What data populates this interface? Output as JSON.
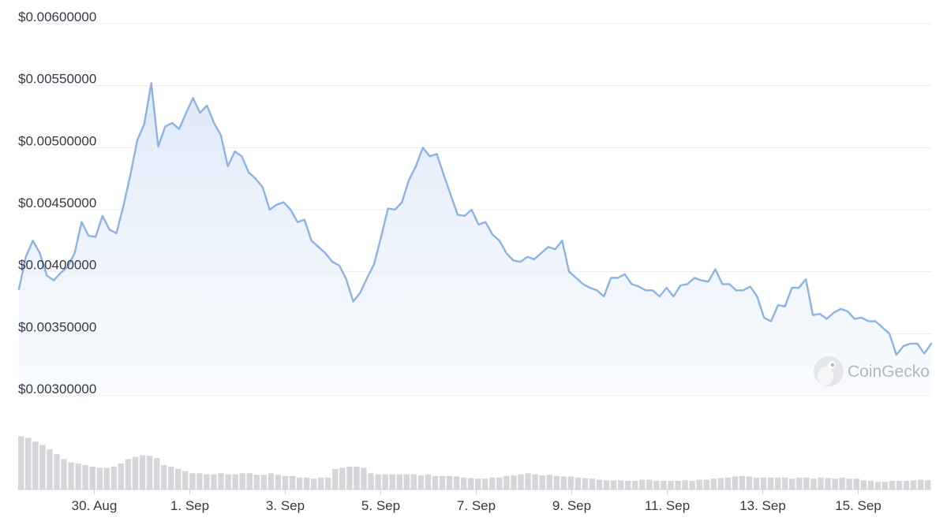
{
  "chart_data": [
    {
      "type": "area",
      "series": [
        {
          "values": [
            0.00386,
            0.00412,
            0.00425,
            0.00415,
            0.00397,
            0.00393,
            0.00399,
            0.00404,
            0.00415,
            0.0044,
            0.00429,
            0.00428,
            0.00445,
            0.00434,
            0.00431,
            0.00453,
            0.00478,
            0.00506,
            0.00519,
            0.00552,
            0.00501,
            0.00517,
            0.0052,
            0.00515,
            0.00528,
            0.0054,
            0.00528,
            0.00534,
            0.0052,
            0.0051,
            0.00485,
            0.00497,
            0.00493,
            0.0048,
            0.00475,
            0.00468,
            0.0045,
            0.00454,
            0.00456,
            0.0045,
            0.0044,
            0.00442,
            0.00425,
            0.0042,
            0.00415,
            0.00408,
            0.00405,
            0.00394,
            0.00376,
            0.00383,
            0.00395,
            0.00406,
            0.00428,
            0.00451,
            0.0045,
            0.00456,
            0.00474,
            0.00485,
            0.005,
            0.00493,
            0.00495,
            0.00478,
            0.00462,
            0.00446,
            0.00445,
            0.0045,
            0.00438,
            0.0044,
            0.0043,
            0.00425,
            0.00415,
            0.00409,
            0.00408,
            0.00412,
            0.0041,
            0.00415,
            0.0042,
            0.00418,
            0.00425,
            0.004,
            0.00395,
            0.0039,
            0.00387,
            0.00385,
            0.0038,
            0.00395,
            0.00395,
            0.00398,
            0.0039,
            0.00388,
            0.00385,
            0.00385,
            0.0038,
            0.00387,
            0.0038,
            0.00389,
            0.0039,
            0.00395,
            0.00393,
            0.00392,
            0.00402,
            0.0039,
            0.0039,
            0.00385,
            0.00385,
            0.00388,
            0.0038,
            0.00363,
            0.0036,
            0.00373,
            0.00372,
            0.00387,
            0.00387,
            0.00394,
            0.00365,
            0.00366,
            0.00362,
            0.00367,
            0.0037,
            0.00368,
            0.00362,
            0.00363,
            0.0036,
            0.0036,
            0.00355,
            0.0035,
            0.00333,
            0.0034,
            0.00342,
            0.00342,
            0.00334,
            0.00342
          ]
        }
      ],
      "yticks": [
        "$0.00600000",
        "$0.00550000",
        "$0.00500000",
        "$0.00450000",
        "$0.00400000",
        "$0.00350000",
        "$0.00300000"
      ],
      "ylim": [
        0.003,
        0.006
      ],
      "grid": true,
      "line_color": "#8db3e2",
      "fill_color": "#e8f0fb"
    },
    {
      "type": "bar",
      "series": [
        {
          "values": [
            0.98,
            0.95,
            0.88,
            0.82,
            0.74,
            0.65,
            0.56,
            0.5,
            0.48,
            0.45,
            0.42,
            0.4,
            0.4,
            0.42,
            0.48,
            0.56,
            0.6,
            0.63,
            0.62,
            0.58,
            0.45,
            0.42,
            0.38,
            0.34,
            0.3,
            0.3,
            0.28,
            0.28,
            0.3,
            0.28,
            0.28,
            0.3,
            0.3,
            0.27,
            0.27,
            0.3,
            0.27,
            0.25,
            0.25,
            0.22,
            0.22,
            0.2,
            0.22,
            0.22,
            0.38,
            0.4,
            0.42,
            0.42,
            0.4,
            0.3,
            0.28,
            0.28,
            0.28,
            0.28,
            0.28,
            0.28,
            0.26,
            0.28,
            0.25,
            0.25,
            0.25,
            0.24,
            0.22,
            0.21,
            0.2,
            0.2,
            0.22,
            0.22,
            0.25,
            0.26,
            0.28,
            0.3,
            0.28,
            0.26,
            0.27,
            0.25,
            0.24,
            0.24,
            0.22,
            0.21,
            0.2,
            0.18,
            0.17,
            0.17,
            0.17,
            0.16,
            0.16,
            0.18,
            0.18,
            0.16,
            0.16,
            0.16,
            0.16,
            0.17,
            0.16,
            0.18,
            0.18,
            0.2,
            0.21,
            0.22,
            0.24,
            0.25,
            0.24,
            0.22,
            0.22,
            0.22,
            0.22,
            0.22,
            0.2,
            0.22,
            0.22,
            0.2,
            0.22,
            0.21,
            0.2,
            0.22,
            0.2,
            0.2,
            0.17,
            0.16,
            0.14,
            0.14,
            0.16,
            0.16,
            0.16,
            0.17,
            0.18,
            0.17
          ]
        }
      ],
      "bar_color": "#d4d6d9"
    }
  ],
  "xticks": [
    "30. Aug",
    "1. Sep",
    "3. Sep",
    "5. Sep",
    "7. Sep",
    "9. Sep",
    "11. Sep",
    "13. Sep",
    "15. Sep"
  ],
  "watermark": {
    "text": "CoinGecko",
    "icon": "gecko-logo-icon"
  }
}
